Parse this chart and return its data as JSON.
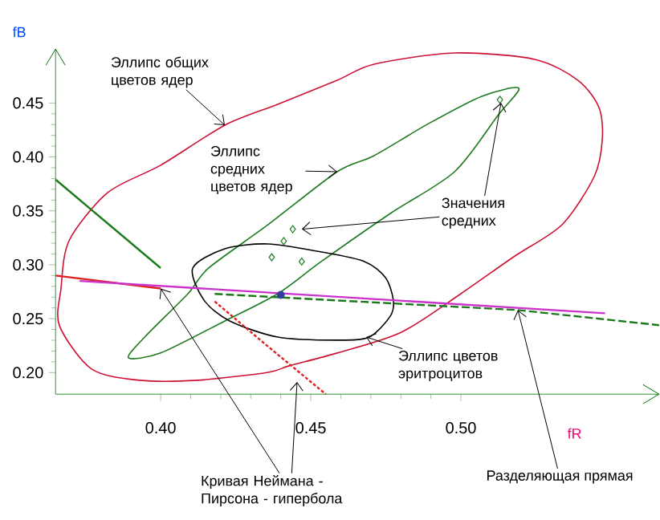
{
  "chart_data": {
    "type": "line",
    "xlabel": "fR",
    "ylabel": "fB",
    "xlim": [
      0.365,
      0.566
    ],
    "ylim": [
      0.18,
      0.5
    ],
    "xticks": [
      {
        "value": 0.4,
        "label": "0.40"
      },
      {
        "value": 0.45,
        "label": "0.45"
      },
      {
        "value": 0.5,
        "label": "0.50"
      }
    ],
    "yticks": [
      {
        "value": 0.2,
        "label": "0.20"
      },
      {
        "value": 0.25,
        "label": "0.25"
      },
      {
        "value": 0.3,
        "label": "0.30"
      },
      {
        "value": 0.35,
        "label": "0.35"
      },
      {
        "value": 0.4,
        "label": "0.40"
      },
      {
        "value": 0.45,
        "label": "0.45"
      }
    ],
    "grid": false,
    "series": [
      {
        "color": "#1a7a1a",
        "marker": "none",
        "line_style": "solid",
        "x": [
          0.365,
          0.4
        ],
        "values": [
          0.379,
          0.297
        ]
      },
      {
        "color": "#1a7a1a",
        "marker": "none",
        "line_style": "dashed",
        "x": [
          0.418,
          0.519,
          0.566
        ],
        "values": [
          0.273,
          0.258,
          0.244
        ]
      },
      {
        "color": "#e02020",
        "marker": "none",
        "line_style": "solid",
        "x": [
          0.365,
          0.4
        ],
        "values": [
          0.29,
          0.278
        ]
      },
      {
        "color": "#e02020",
        "marker": "none",
        "line_style": "dotted",
        "x": [
          0.418,
          0.435,
          0.455
        ],
        "values": [
          0.266,
          0.226,
          0.18
        ]
      },
      {
        "color": "#cc33cc",
        "marker": "none",
        "line_style": "solid",
        "x": [
          0.373,
          0.548
        ],
        "values": [
          0.285,
          0.255
        ]
      },
      {
        "type": "scatter",
        "color": "#1e7a1e",
        "marker": "diamond",
        "x": [
          0.437,
          0.441,
          0.444,
          0.447,
          0.513
        ],
        "values": [
          0.307,
          0.322,
          0.333,
          0.303,
          0.453
        ]
      },
      {
        "type": "scatter",
        "color": "#3040a0",
        "marker": "circle",
        "x": [
          0.44
        ],
        "values": [
          0.272
        ]
      }
    ],
    "annotations": [
      "Эллипс общих цветов ядер",
      "Эллипс средних цветов ядер",
      {
        "text": "Значения средних",
        "x": 0.447,
        "y": 0.333
      },
      "Эллипс цветов эритроцитов",
      {
        "text": "Кривая Неймана - Пирсона - гипербола",
        "x": 0.4,
        "y": 0.278
      },
      {
        "text": "Разделяющая прямая",
        "x": 0.519,
        "y": 0.258
      }
    ]
  }
}
